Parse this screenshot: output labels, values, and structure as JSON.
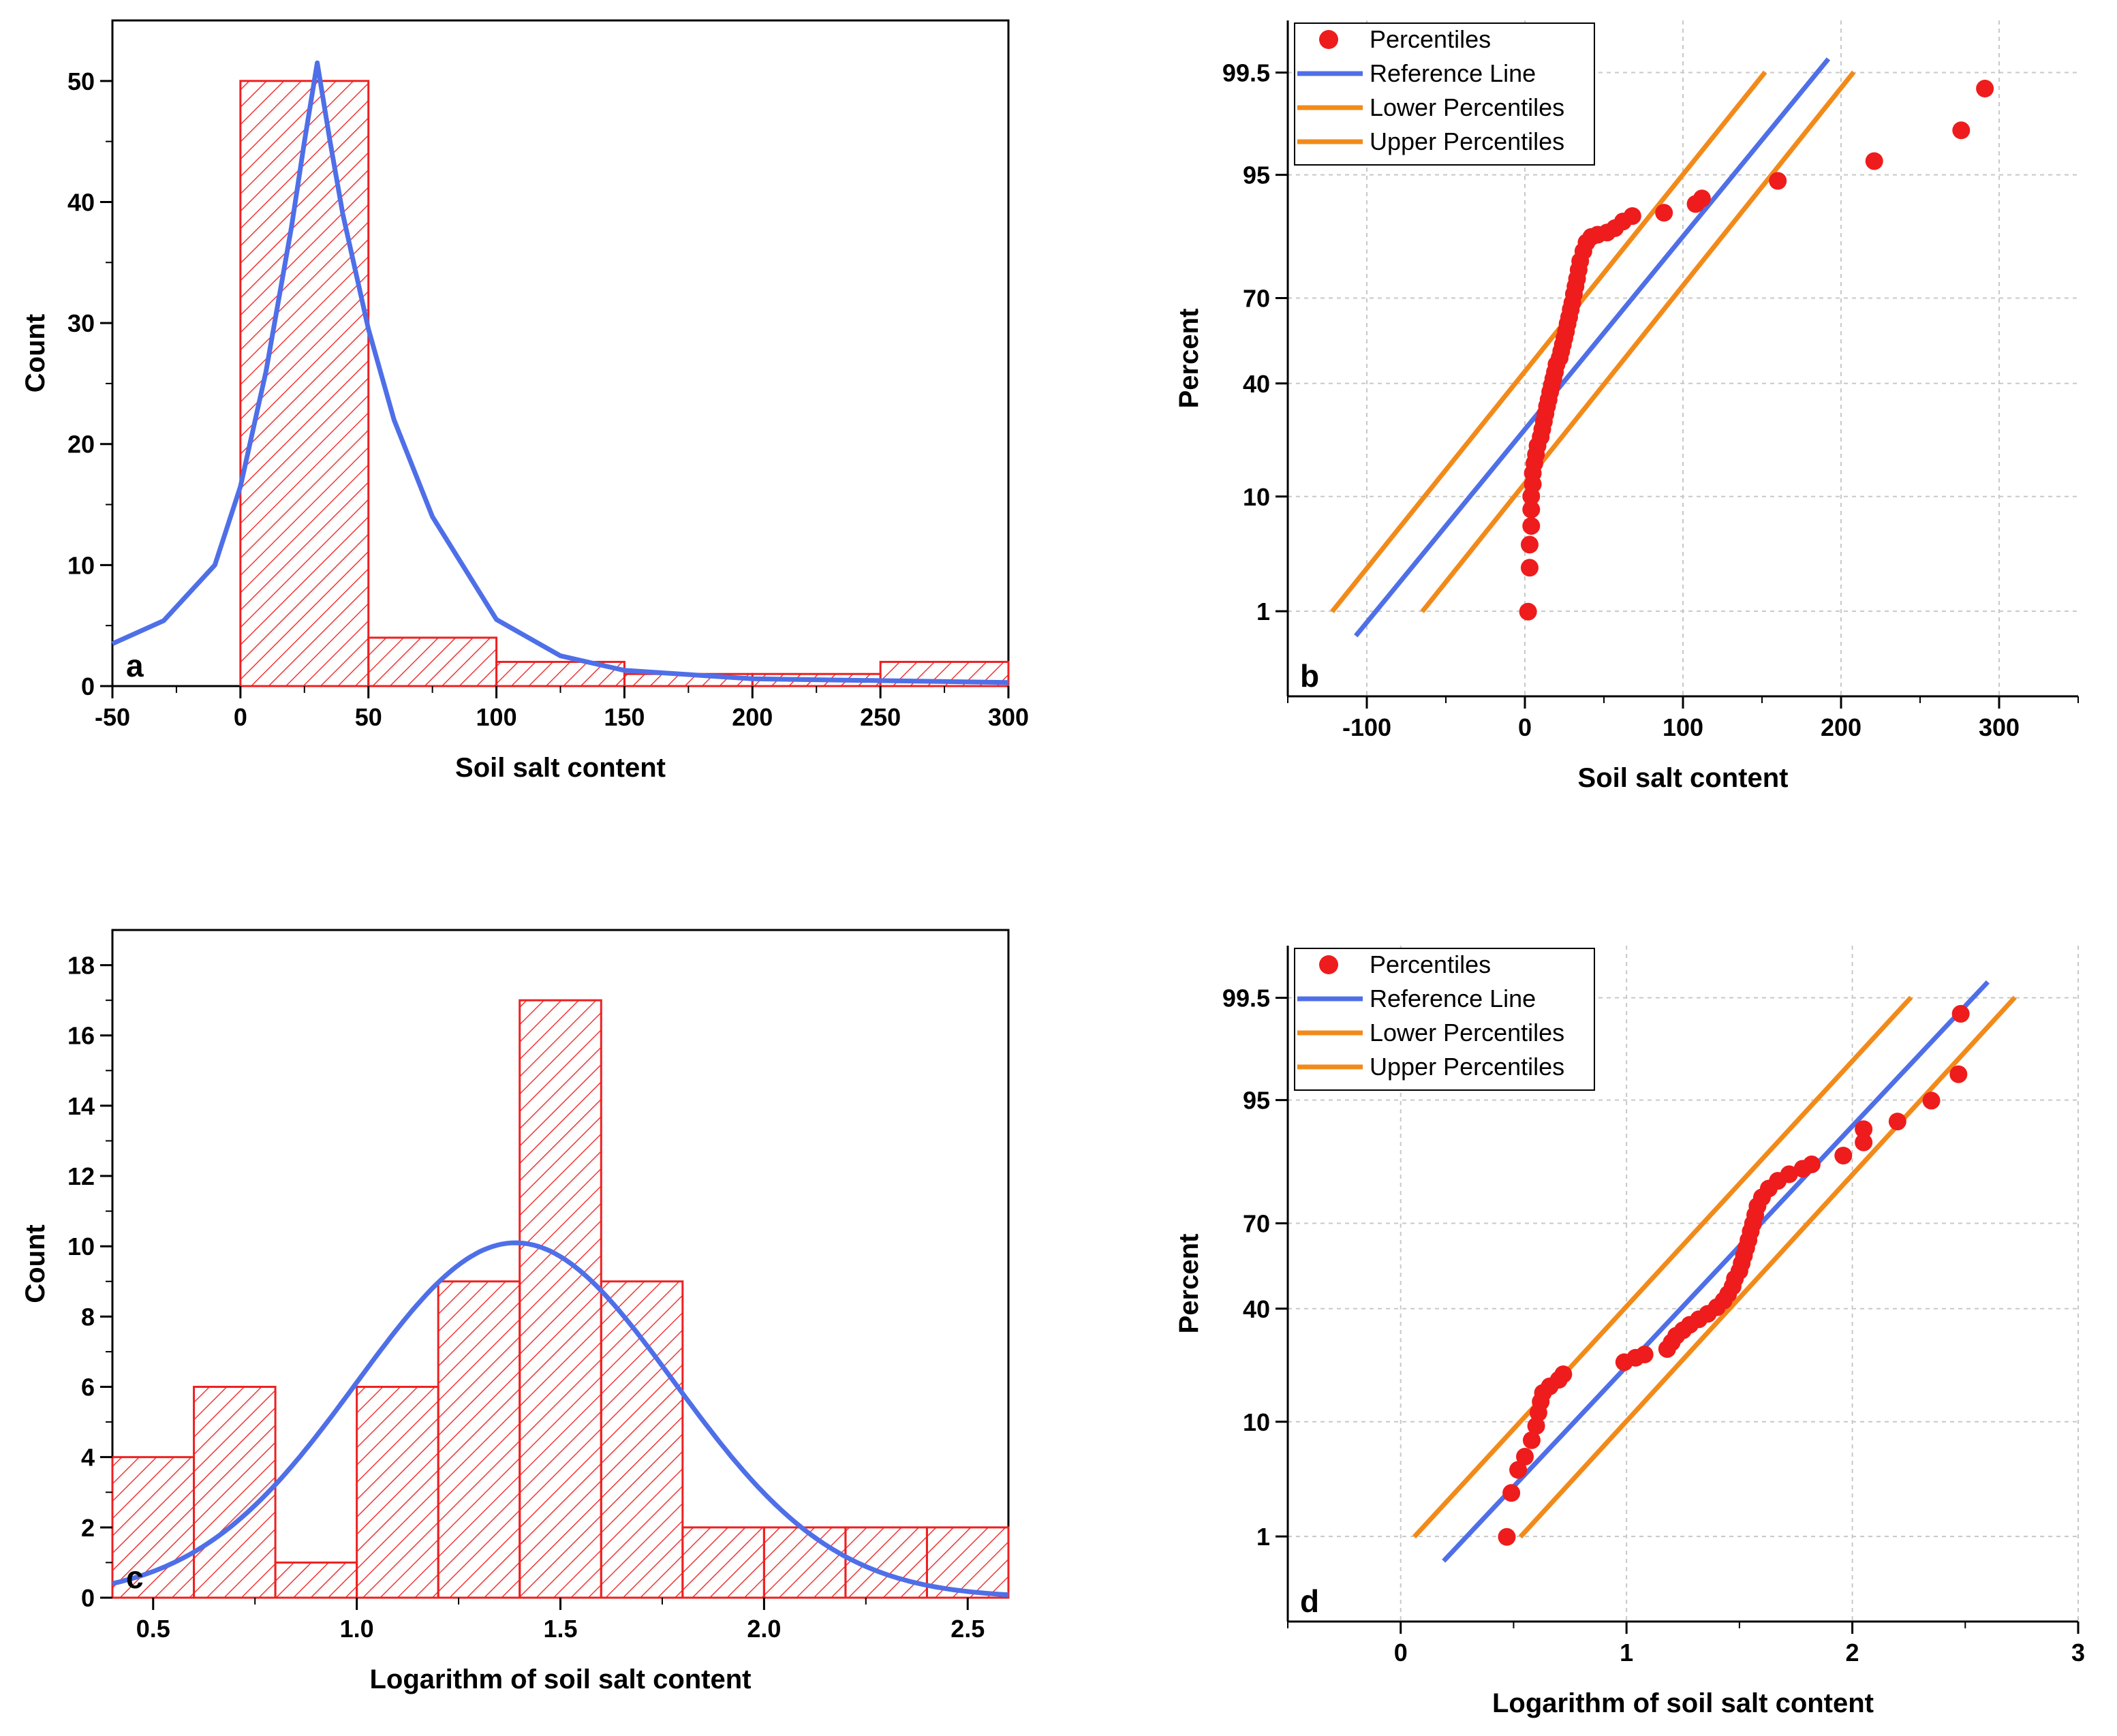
{
  "chart_data": [
    {
      "id": "a",
      "type": "bar",
      "panel_label": "a",
      "xlabel": "Soil salt content",
      "ylabel": "Count",
      "xlim": [
        -50,
        300
      ],
      "ylim": [
        0,
        55
      ],
      "xticks": [
        -50,
        0,
        50,
        100,
        150,
        200,
        250,
        300
      ],
      "yticks": [
        0,
        10,
        20,
        30,
        40,
        50
      ],
      "bins": [
        {
          "from": 0,
          "to": 50,
          "count": 50
        },
        {
          "from": 50,
          "to": 100,
          "count": 4
        },
        {
          "from": 100,
          "to": 150,
          "count": 2
        },
        {
          "from": 150,
          "to": 200,
          "count": 1
        },
        {
          "from": 200,
          "to": 250,
          "count": 1
        },
        {
          "from": 250,
          "to": 300,
          "count": 2
        }
      ],
      "fit_curve": {
        "color": "#4f6fe8",
        "points": [
          [
            -50,
            3.5
          ],
          [
            -30,
            5.4
          ],
          [
            -10,
            10
          ],
          [
            0,
            16.5
          ],
          [
            10,
            26
          ],
          [
            20,
            38
          ],
          [
            25,
            45
          ],
          [
            30,
            51.5
          ],
          [
            35,
            45
          ],
          [
            40,
            39
          ],
          [
            50,
            29.5
          ],
          [
            60,
            22
          ],
          [
            75,
            14
          ],
          [
            100,
            5.5
          ],
          [
            125,
            2.5
          ],
          [
            150,
            1.3
          ],
          [
            200,
            0.6
          ],
          [
            300,
            0.3
          ]
        ]
      },
      "hist_color": "#ee2020"
    },
    {
      "id": "b",
      "type": "scatter",
      "panel_label": "b",
      "xlabel": "Soil salt content",
      "ylabel": "Percent",
      "xlim": [
        -150,
        350
      ],
      "xticks": [
        -100,
        0,
        100,
        200,
        300
      ],
      "ytick_labels": [
        "1",
        "10",
        "40",
        "70",
        "95",
        "99.5"
      ],
      "ytick_z": [
        -2.326,
        -1.282,
        -0.253,
        0.524,
        1.645,
        2.576
      ],
      "zlim": [
        -3.1,
        3.05
      ],
      "legend": [
        "Percentiles",
        "Reference Line",
        "Lower Percentiles",
        "Upper Percentiles"
      ],
      "points": [
        [
          2,
          -2.33
        ],
        [
          3,
          -1.93
        ],
        [
          3,
          -1.72
        ],
        [
          4,
          -1.55
        ],
        [
          4,
          -1.4
        ],
        [
          4,
          -1.28
        ],
        [
          5,
          -1.17
        ],
        [
          5,
          -1.07
        ],
        [
          6,
          -0.98
        ],
        [
          7,
          -0.9
        ],
        [
          8,
          -0.82
        ],
        [
          10,
          -0.74
        ],
        [
          11,
          -0.67
        ],
        [
          12,
          -0.6
        ],
        [
          13,
          -0.53
        ],
        [
          14,
          -0.46
        ],
        [
          15,
          -0.4
        ],
        [
          16,
          -0.33
        ],
        [
          17,
          -0.27
        ],
        [
          18,
          -0.21
        ],
        [
          19,
          -0.15
        ],
        [
          20,
          -0.08
        ],
        [
          22,
          -0.02
        ],
        [
          23,
          0.04
        ],
        [
          24,
          0.1
        ],
        [
          25,
          0.16
        ],
        [
          26,
          0.22
        ],
        [
          27,
          0.29
        ],
        [
          28,
          0.35
        ],
        [
          29,
          0.42
        ],
        [
          30,
          0.48
        ],
        [
          31,
          0.56
        ],
        [
          32,
          0.63
        ],
        [
          33,
          0.7
        ],
        [
          34,
          0.78
        ],
        [
          35,
          0.86
        ],
        [
          37,
          0.95
        ],
        [
          39,
          1.03
        ],
        [
          42,
          1.08
        ],
        [
          46,
          1.1
        ],
        [
          52,
          1.12
        ],
        [
          57,
          1.16
        ],
        [
          62,
          1.22
        ],
        [
          68,
          1.27
        ],
        [
          88,
          1.3
        ],
        [
          108,
          1.38
        ],
        [
          112,
          1.43
        ],
        [
          160,
          1.59
        ],
        [
          221,
          1.77
        ],
        [
          276,
          2.05
        ],
        [
          291,
          2.43
        ]
      ],
      "reference_line": {
        "color": "#4f6fe8",
        "points": [
          [
            -107,
            -2.55
          ],
          [
            192,
            2.7
          ]
        ]
      },
      "lower_line": {
        "color": "#f28a1a",
        "points": [
          [
            -122,
            -2.33
          ],
          [
            152,
            2.58
          ]
        ]
      },
      "upper_line": {
        "color": "#f28a1a",
        "points": [
          [
            -65,
            -2.33
          ],
          [
            208,
            2.58
          ]
        ]
      }
    },
    {
      "id": "c",
      "type": "bar",
      "panel_label": "c",
      "xlabel": "Logarithm of soil salt content",
      "ylabel": "Count",
      "xlim": [
        0.4,
        2.6
      ],
      "ylim": [
        0,
        19
      ],
      "xticks": [
        0.5,
        1.0,
        1.5,
        2.0,
        2.5
      ],
      "xtick_labels": [
        "0.5",
        "1.0",
        "1.5",
        "2.0",
        "2.5"
      ],
      "yticks": [
        0,
        2,
        4,
        6,
        8,
        10,
        12,
        14,
        16,
        18
      ],
      "bins": [
        {
          "from": 0.4,
          "to": 0.6,
          "count": 4
        },
        {
          "from": 0.6,
          "to": 0.8,
          "count": 6
        },
        {
          "from": 0.8,
          "to": 1.0,
          "count": 1
        },
        {
          "from": 1.0,
          "to": 1.2,
          "count": 6
        },
        {
          "from": 1.2,
          "to": 1.4,
          "count": 9
        },
        {
          "from": 1.4,
          "to": 1.6,
          "count": 17
        },
        {
          "from": 1.6,
          "to": 1.8,
          "count": 9
        },
        {
          "from": 1.8,
          "to": 2.0,
          "count": 2
        },
        {
          "from": 2.0,
          "to": 2.2,
          "count": 2
        },
        {
          "from": 2.2,
          "to": 2.4,
          "count": 2
        },
        {
          "from": 2.4,
          "to": 2.6,
          "count": 2
        }
      ],
      "fit_curve": {
        "color": "#4f6fe8",
        "type": "normal",
        "mean": 1.39,
        "sd": 0.39,
        "peak": 10.1
      },
      "hist_color": "#ee2020"
    },
    {
      "id": "d",
      "type": "scatter",
      "panel_label": "d",
      "xlabel": "Logarithm of soil salt content",
      "ylabel": "Percent",
      "xlim": [
        -0.5,
        3
      ],
      "xticks": [
        0,
        1,
        2,
        3
      ],
      "ytick_labels": [
        "1",
        "10",
        "40",
        "70",
        "95",
        "99.5"
      ],
      "ytick_z": [
        -2.326,
        -1.282,
        -0.253,
        0.524,
        1.645,
        2.576
      ],
      "zlim": [
        -3.1,
        3.05
      ],
      "legend": [
        "Percentiles",
        "Reference Line",
        "Lower Percentiles",
        "Upper Percentiles"
      ],
      "points": [
        [
          0.47,
          -2.33
        ],
        [
          0.49,
          -1.93
        ],
        [
          0.52,
          -1.72
        ],
        [
          0.55,
          -1.6
        ],
        [
          0.58,
          -1.45
        ],
        [
          0.6,
          -1.32
        ],
        [
          0.61,
          -1.2
        ],
        [
          0.62,
          -1.1
        ],
        [
          0.63,
          -1.02
        ],
        [
          0.66,
          -0.96
        ],
        [
          0.7,
          -0.9
        ],
        [
          0.72,
          -0.85
        ],
        [
          0.99,
          -0.74
        ],
        [
          1.04,
          -0.7
        ],
        [
          1.08,
          -0.67
        ],
        [
          1.18,
          -0.62
        ],
        [
          1.2,
          -0.56
        ],
        [
          1.22,
          -0.5
        ],
        [
          1.25,
          -0.45
        ],
        [
          1.28,
          -0.4
        ],
        [
          1.32,
          -0.35
        ],
        [
          1.36,
          -0.3
        ],
        [
          1.4,
          -0.24
        ],
        [
          1.43,
          -0.18
        ],
        [
          1.45,
          -0.12
        ],
        [
          1.47,
          -0.05
        ],
        [
          1.48,
          0.02
        ],
        [
          1.5,
          0.09
        ],
        [
          1.51,
          0.16
        ],
        [
          1.52,
          0.23
        ],
        [
          1.53,
          0.3
        ],
        [
          1.54,
          0.37
        ],
        [
          1.55,
          0.45
        ],
        [
          1.56,
          0.52
        ],
        [
          1.57,
          0.6
        ],
        [
          1.58,
          0.68
        ],
        [
          1.6,
          0.76
        ],
        [
          1.63,
          0.84
        ],
        [
          1.67,
          0.91
        ],
        [
          1.72,
          0.97
        ],
        [
          1.78,
          1.02
        ],
        [
          1.82,
          1.06
        ],
        [
          1.96,
          1.14
        ],
        [
          2.05,
          1.26
        ],
        [
          2.05,
          1.38
        ],
        [
          2.2,
          1.45
        ],
        [
          2.35,
          1.64
        ],
        [
          2.47,
          1.88
        ],
        [
          2.48,
          2.43
        ]
      ],
      "reference_line": {
        "color": "#4f6fe8",
        "points": [
          [
            0.19,
            -2.55
          ],
          [
            2.6,
            2.72
          ]
        ]
      },
      "lower_line": {
        "color": "#f28a1a",
        "points": [
          [
            0.06,
            -2.33
          ],
          [
            2.26,
            2.58
          ]
        ]
      },
      "upper_line": {
        "color": "#f28a1a",
        "points": [
          [
            0.53,
            -2.33
          ],
          [
            2.72,
            2.58
          ]
        ]
      }
    }
  ]
}
